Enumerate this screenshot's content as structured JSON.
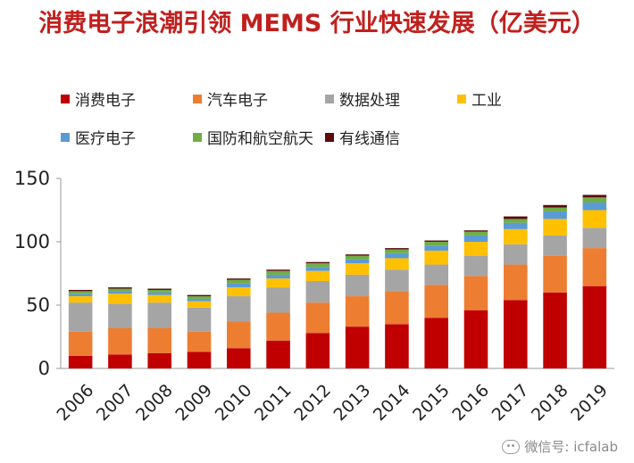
{
  "chart_data": {
    "type": "bar",
    "stacked": true,
    "title": "消费电子浪潮引领 MEMS 行业快速发展（亿美元）",
    "categories": [
      "2006",
      "2007",
      "2008",
      "2009",
      "2010",
      "2011",
      "2012",
      "2013",
      "2014",
      "2015",
      "2016",
      "2017",
      "2018",
      "2019"
    ],
    "ylim": [
      0,
      150
    ],
    "yticks": [
      0,
      50,
      100,
      150
    ],
    "legend_position": "top-left",
    "grid": false,
    "series": [
      {
        "name": "消费电子",
        "color": "#c00000",
        "values": [
          10,
          11,
          12,
          13,
          16,
          22,
          28,
          33,
          35,
          40,
          46,
          54,
          60,
          65
        ]
      },
      {
        "name": "汽车电子",
        "color": "#ed7d31",
        "values": [
          19,
          21,
          20,
          16,
          21,
          22,
          24,
          24,
          26,
          26,
          27,
          28,
          29,
          30
        ]
      },
      {
        "name": "数据处理",
        "color": "#a5a5a5",
        "values": [
          23,
          19,
          20,
          19,
          20,
          20,
          17,
          17,
          17,
          16,
          16,
          16,
          16,
          16
        ]
      },
      {
        "name": "工业",
        "color": "#ffc000",
        "values": [
          5,
          8,
          6,
          5,
          7,
          7,
          8,
          9,
          9,
          11,
          11,
          12,
          13,
          14
        ]
      },
      {
        "name": "医疗电子",
        "color": "#5b9bd5",
        "values": [
          2,
          2,
          2,
          2,
          3,
          3,
          3,
          3,
          4,
          4,
          5,
          5,
          6,
          6
        ]
      },
      {
        "name": "国防和航空航天",
        "color": "#70ad47",
        "values": [
          2,
          2,
          2,
          2,
          3,
          3,
          3,
          3,
          3,
          3,
          3,
          3,
          3,
          4
        ]
      },
      {
        "name": "有线通信",
        "color": "#5a0d0d",
        "values": [
          1,
          1,
          1,
          1,
          1,
          1,
          1,
          1,
          1,
          1,
          1,
          2,
          2,
          2
        ]
      }
    ]
  },
  "watermark": {
    "text": "微信号: icfalab"
  }
}
